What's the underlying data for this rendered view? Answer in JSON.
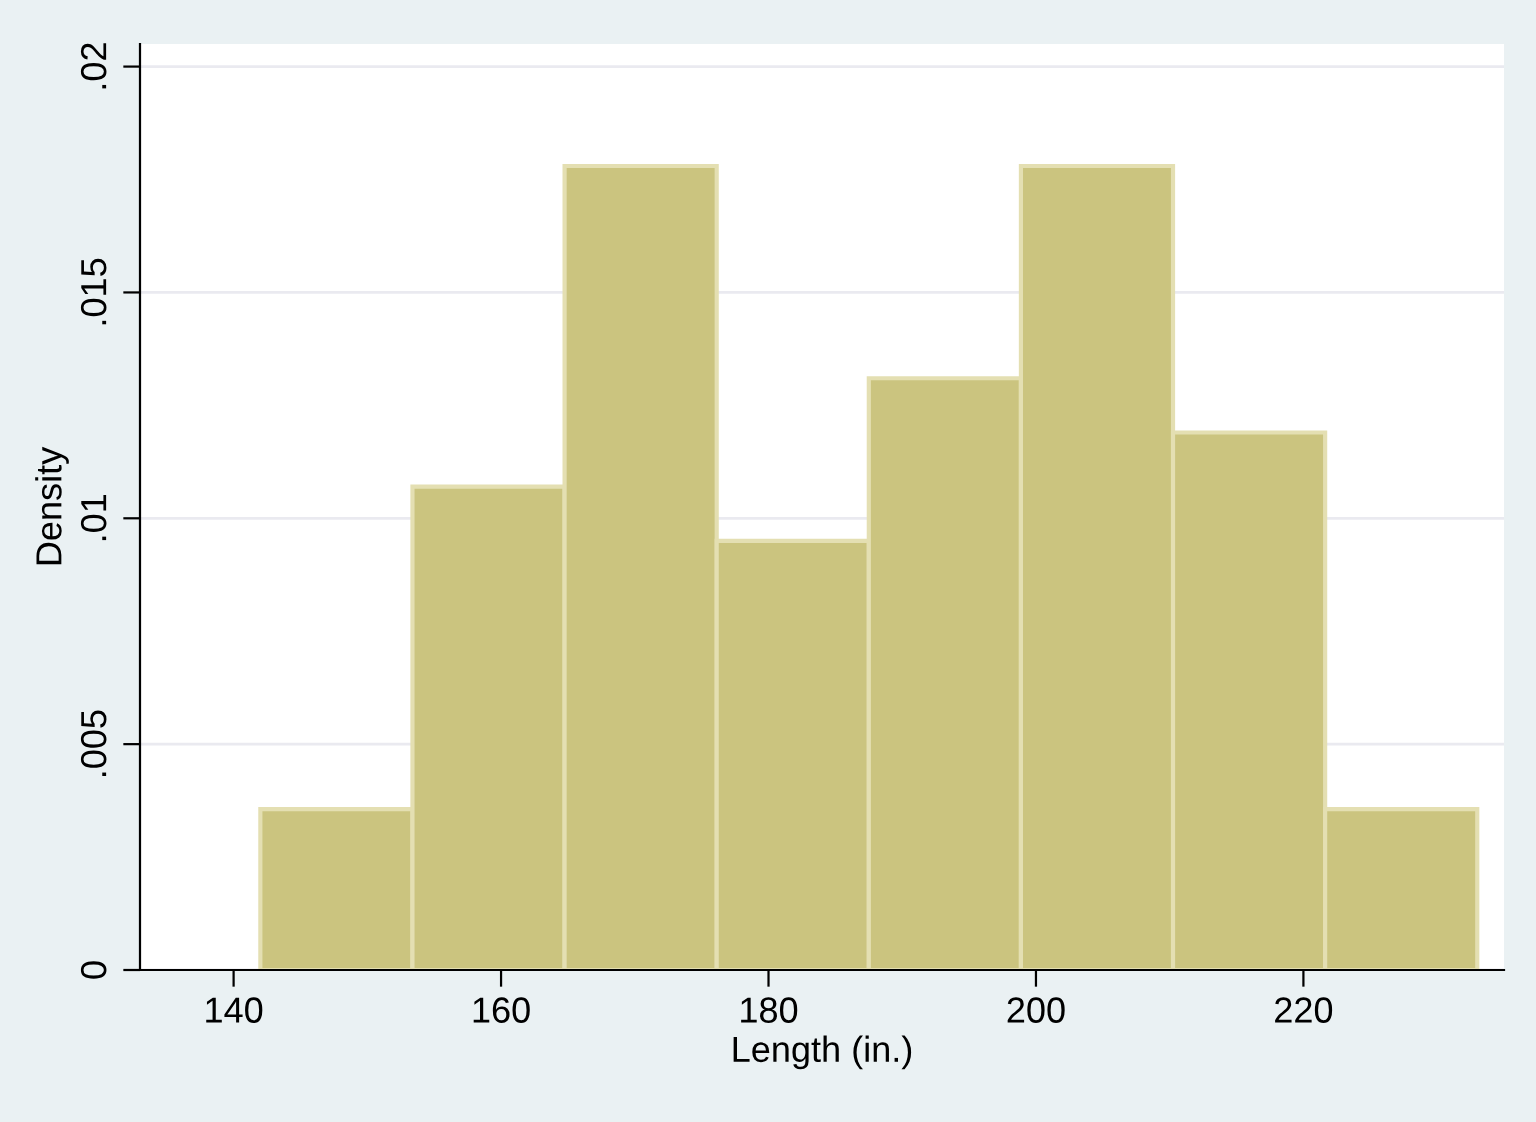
{
  "chart_data": {
    "type": "histogram",
    "xlabel": "Length (in.)",
    "ylabel": "Density",
    "bins": [
      142,
      153.375,
      164.75,
      176.125,
      187.5,
      198.875,
      210.25,
      221.625,
      233
    ],
    "values": [
      0.00356,
      0.0107,
      0.0178,
      0.0095,
      0.0131,
      0.0178,
      0.0119,
      0.00356
    ],
    "color": "#cbc47f",
    "xlim": [
      133,
      235
    ],
    "xticks": [
      140,
      160,
      180,
      200,
      220
    ],
    "ylim": [
      0,
      0.0205
    ],
    "yticks": [
      0,
      {
        "value": 0.005,
        "label": ".005"
      },
      {
        "value": 0.01,
        "label": ".01"
      },
      {
        "value": 0.015,
        "label": ".015"
      },
      {
        "value": 0.02,
        "label": ".02"
      }
    ],
    "grid": "y"
  }
}
